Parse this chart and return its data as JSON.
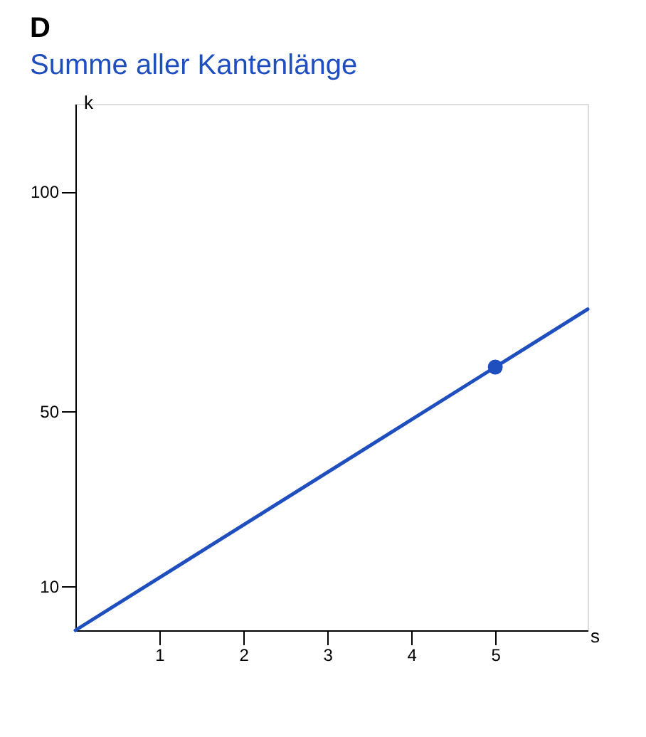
{
  "chart_data": {
    "type": "line",
    "title": "D",
    "subtitle": "Summe aller Kantenlänge",
    "xlabel": "s",
    "ylabel": "k",
    "xlim": [
      0,
      6.1
    ],
    "ylim": [
      0,
      120
    ],
    "xticks": [
      1,
      2,
      3,
      4,
      5
    ],
    "yticks": [
      10,
      50,
      100
    ],
    "series": [
      {
        "color": "#1f4fbf",
        "x": [
          0,
          5,
          6.1
        ],
        "values": [
          0,
          60,
          73.2
        ],
        "marker": "none"
      },
      {
        "type": "scatter",
        "color": "#1f4fbf",
        "x": [
          5
        ],
        "values": [
          60
        ],
        "marker": "circle"
      }
    ],
    "grid": false
  }
}
